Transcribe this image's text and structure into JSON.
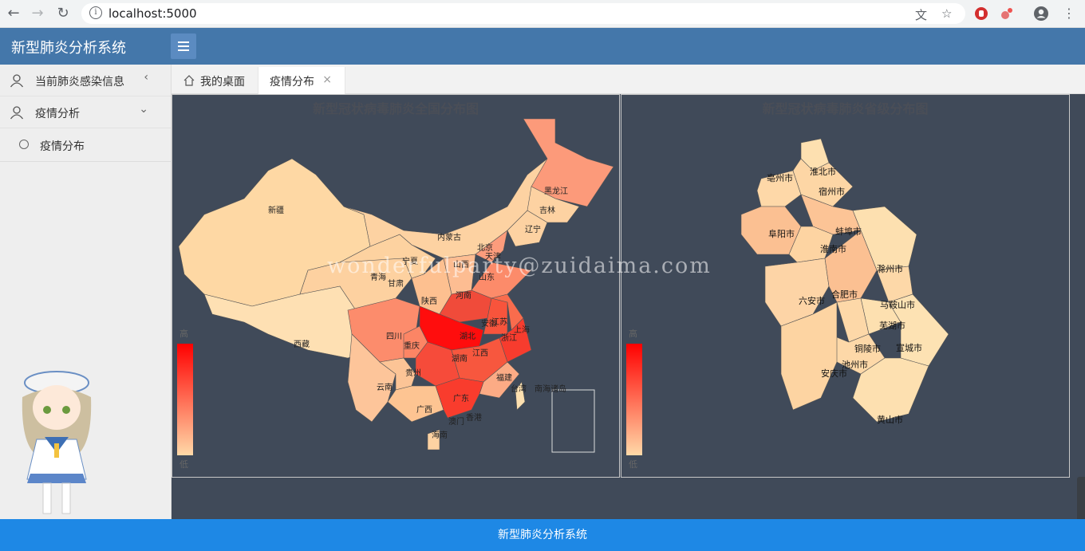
{
  "browser": {
    "url": "localhost:5000"
  },
  "app": {
    "title": "新型肺炎分析系统"
  },
  "sidebar": {
    "items": [
      {
        "label": "当前肺炎感染信息"
      },
      {
        "label": "疫情分析"
      }
    ],
    "sub_items": [
      {
        "label": "疫情分布"
      }
    ]
  },
  "tabs": [
    {
      "label": "我的桌面"
    },
    {
      "label": "疫情分布"
    }
  ],
  "national_map": {
    "title": "新型冠状病毒肺炎全国分布图",
    "legend_high": "高",
    "legend_low": "低",
    "provinces": [
      "新疆",
      "西藏",
      "青海",
      "甘肃",
      "宁夏",
      "内蒙古",
      "黑龙江",
      "吉林",
      "辽宁",
      "北京",
      "天津",
      "山西",
      "陕西",
      "河南",
      "山东",
      "四川",
      "重庆",
      "湖北",
      "安徽",
      "江苏",
      "上海",
      "浙江",
      "湖南",
      "江西",
      "福建",
      "云南",
      "贵州",
      "广西",
      "广东",
      "海南",
      "澳门",
      "香港",
      "台湾",
      "南海诸岛"
    ]
  },
  "province_map": {
    "title": "新型冠状病毒肺炎省级分布图",
    "legend_high": "高",
    "legend_low": "低",
    "cities": [
      "亳州市",
      "淮北市",
      "宿州市",
      "阜阳市",
      "蚌埠市",
      "淮南市",
      "滁州市",
      "六安市",
      "合肥市",
      "马鞍山市",
      "芜湖市",
      "铜陵市",
      "宣城市",
      "池州市",
      "安庆市",
      "黄山市"
    ]
  },
  "watermark": "wonderfulparty@zuidaima.com",
  "footer": {
    "text": "新型肺炎分析系统"
  },
  "colors": {
    "header": "#4477aa",
    "footer": "#1e88e5",
    "map_bg": "#404a59",
    "scale_high": "#ff0000",
    "scale_low": "#ffd9a8"
  }
}
